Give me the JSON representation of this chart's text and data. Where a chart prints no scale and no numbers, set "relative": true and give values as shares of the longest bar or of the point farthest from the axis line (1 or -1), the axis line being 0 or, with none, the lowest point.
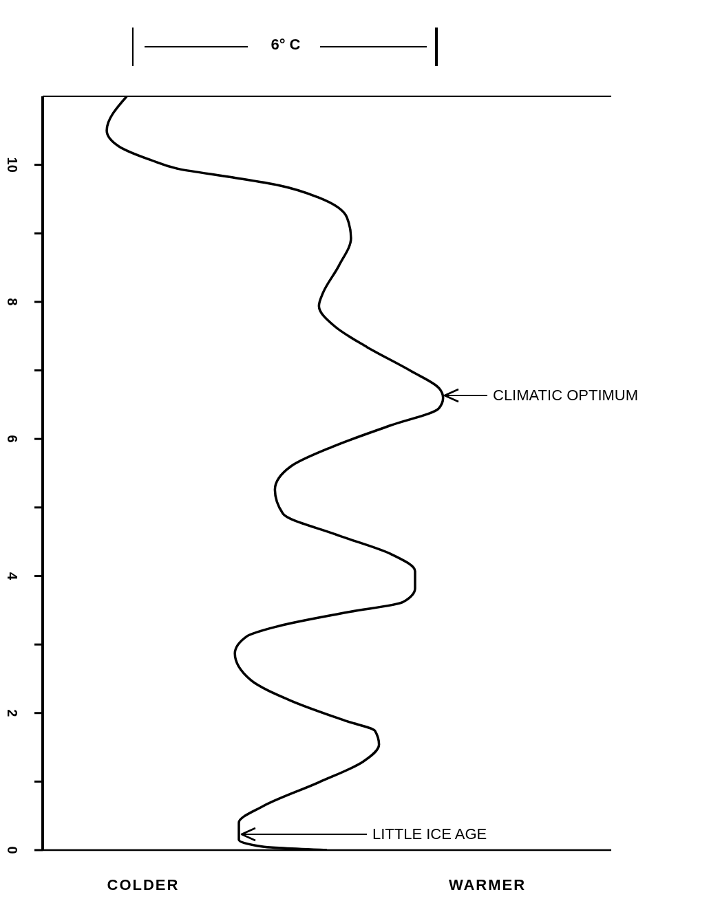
{
  "chart_data": {
    "type": "line",
    "orientation": "horizontal",
    "relative": true,
    "color": "#000000",
    "x": [
      11.0,
      10.5,
      10.27,
      10.07,
      9.94,
      9.82,
      9.7,
      9.52,
      9.23,
      8.93,
      8.53,
      8.13,
      7.94,
      7.64,
      7.34,
      6.99,
      6.74,
      6.6,
      6.45,
      6.2,
      5.9,
      5.6,
      5.26,
      4.91,
      4.61,
      4.32,
      4.07,
      3.82,
      3.62,
      3.47,
      3.27,
      3.12,
      2.87,
      2.48,
      2.18,
      1.88,
      1.74,
      1.54,
      1.29,
      0.99,
      0.64,
      0.4,
      0.15,
      0.05,
      0.0
    ],
    "values": [
      0.21,
      0.16,
      0.19,
      0.27,
      0.34,
      0.47,
      0.59,
      0.69,
      0.76,
      0.77,
      0.74,
      0.7,
      0.69,
      0.73,
      0.81,
      0.92,
      0.99,
      1.0,
      0.99,
      0.87,
      0.73,
      0.62,
      0.58,
      0.6,
      0.73,
      0.87,
      0.93,
      0.93,
      0.9,
      0.76,
      0.59,
      0.51,
      0.48,
      0.52,
      0.62,
      0.76,
      0.83,
      0.84,
      0.8,
      0.69,
      0.55,
      0.49,
      0.49,
      0.55,
      0.71
    ],
    "ylim": [
      0,
      11
    ],
    "yticks": [
      0,
      {
        "value": 1,
        "label": null
      },
      2,
      {
        "value": 3,
        "label": null
      },
      4,
      {
        "value": 5,
        "label": null
      },
      6,
      {
        "value": 7,
        "label": null
      },
      8,
      {
        "value": 9,
        "label": null
      },
      10
    ],
    "annotations": [
      "6° C",
      "COLDER",
      "WARMER",
      "CLIMATIC OPTIMUM",
      "LITTLE ICE AGE"
    ]
  }
}
